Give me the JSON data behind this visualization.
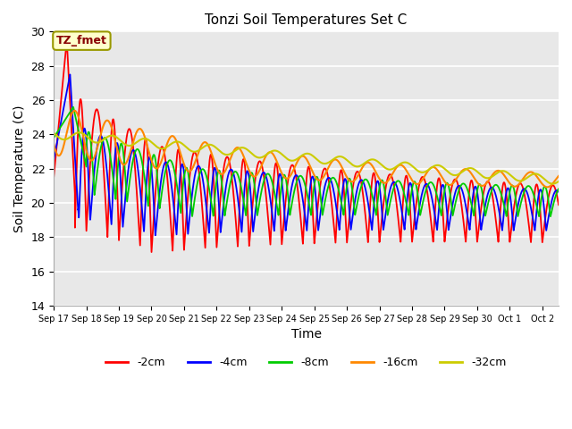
{
  "title": "Tonzi Soil Temperatures Set C",
  "xlabel": "Time",
  "ylabel": "Soil Temperature (C)",
  "ylim": [
    14,
    30
  ],
  "xlim": [
    0,
    15.5
  ],
  "annotation": "TZ_fmet",
  "series_labels": [
    "-2cm",
    "-4cm",
    "-8cm",
    "-16cm",
    "-32cm"
  ],
  "series_colors": [
    "#ff0000",
    "#0000ff",
    "#00cc00",
    "#ff8800",
    "#cccc00"
  ],
  "bg_color": "#e8e8e8",
  "yticks": [
    14,
    16,
    18,
    20,
    22,
    24,
    26,
    28,
    30
  ],
  "tick_labels": [
    "Sep 17",
    "Sep 18",
    "Sep 19",
    "Sep 20",
    "Sep 21",
    "Sep 22",
    "Sep 23",
    "Sep 24",
    "Sep 25",
    "Sep 26",
    "Sep 27",
    "Sep 28",
    "Sep 29",
    "Sep 30",
    "Oct 1",
    "Oct 2"
  ]
}
